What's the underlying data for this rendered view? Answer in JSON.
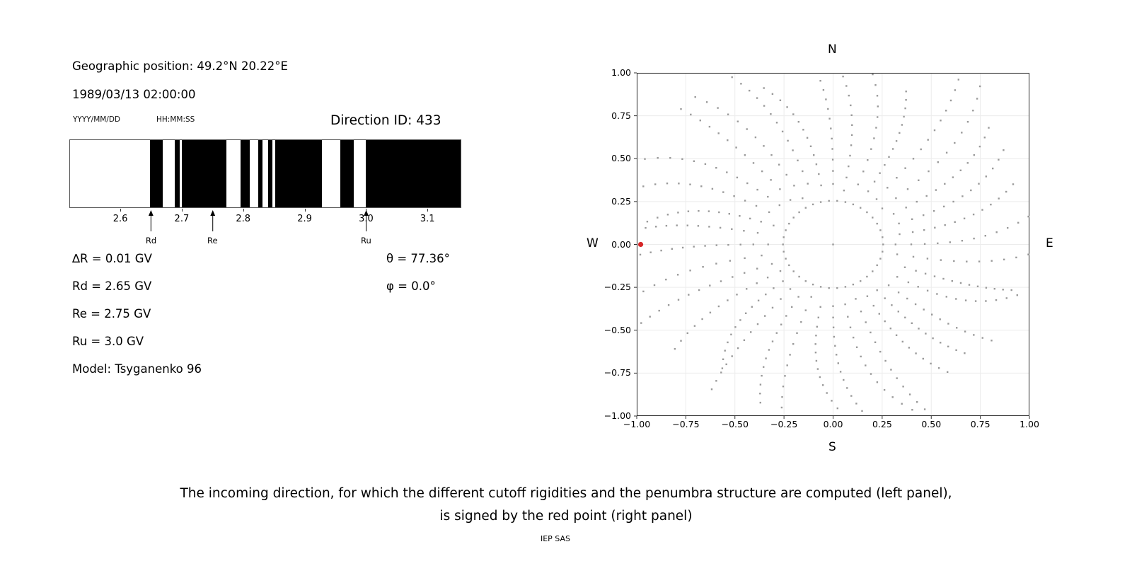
{
  "left_panel": {
    "geo_position": "Geographic position: 49.2°N 20.22°E",
    "datetime": "1989/03/13 02:00:00",
    "date_format": "YYYY/MM/DD",
    "time_format": "HH:MM:SS",
    "direction_id": "Direction ID: 433",
    "params_left": [
      "∆R = 0.01 GV",
      "Rd = 2.65 GV",
      "Re = 2.75 GV",
      "Ru = 3.0 GV",
      "Model: Tsyganenko 96"
    ],
    "params_right": [
      "θ = 77.36°",
      "φ = 0.0°"
    ]
  },
  "chart_data": [
    {
      "type": "bar",
      "subtype": "penumbra-barcode",
      "description": "Cutoff rigidity penumbra structure: black bands = allowed rigidity intervals (GV), white = forbidden",
      "x_range": [
        2.517,
        3.155
      ],
      "ticks": [
        2.6,
        2.7,
        2.8,
        2.9,
        3.0,
        3.1
      ],
      "tick_labels": [
        "2.6",
        "2.7",
        "2.8",
        "2.9",
        "3.0",
        "3.1"
      ],
      "allowed_bands": [
        [
          2.648,
          2.668
        ],
        [
          2.688,
          2.696
        ],
        [
          2.7,
          2.773
        ],
        [
          2.796,
          2.81
        ],
        [
          2.824,
          2.831
        ],
        [
          2.841,
          2.848
        ],
        [
          2.852,
          2.928
        ],
        [
          2.959,
          2.98
        ],
        [
          3.0,
          3.155
        ]
      ],
      "band_color": "#000000",
      "markers": [
        {
          "label": "Rd",
          "value": 2.65
        },
        {
          "label": "Re",
          "value": 2.75
        },
        {
          "label": "Ru",
          "value": 3.0
        }
      ]
    },
    {
      "type": "scatter",
      "description": "Asymptotic / incoming directions map; gray dots form radial spokes, red point marks the computed incoming direction",
      "xlim": [
        -1,
        1
      ],
      "ylim": [
        -1,
        1
      ],
      "xticks": [
        -1.0,
        -0.75,
        -0.5,
        -0.25,
        0.0,
        0.25,
        0.5,
        0.75,
        1.0
      ],
      "xtick_labels": [
        "−1.00",
        "−0.75",
        "−0.50",
        "−0.25",
        "0.00",
        "0.25",
        "0.50",
        "0.75",
        "1.00"
      ],
      "yticks": [
        -1.0,
        -0.75,
        -0.5,
        -0.25,
        0.0,
        0.25,
        0.5,
        0.75,
        1.0
      ],
      "ytick_labels": [
        "−1.00",
        "−0.75",
        "−0.50",
        "−0.25",
        "0.00",
        "0.25",
        "0.50",
        "0.75",
        "1.00"
      ],
      "compass": {
        "top": "N",
        "bottom": "S",
        "left": "W",
        "right": "E"
      },
      "grid": true,
      "dot_color": "#9a9a9a",
      "dot_size": 2.4,
      "red_point": {
        "x": -0.98,
        "y": 0.0,
        "color": "#d62728",
        "radius": 3.6
      },
      "pattern": {
        "spoke_count": 36,
        "spoke_r_min": 0.31,
        "spoke_r_max": 1.05,
        "dots_per_spoke": 13,
        "curvature": 0.16,
        "inner_ring_radius": 0.255,
        "inner_ring_dots": 38,
        "center_dot": true
      }
    }
  ],
  "caption": {
    "line1": "The incoming direction, for which the different cutoff rigidities and the penumbra structure are computed (left panel),",
    "line2": "is signed by the red point (right panel)"
  },
  "credit": "IEP SAS"
}
